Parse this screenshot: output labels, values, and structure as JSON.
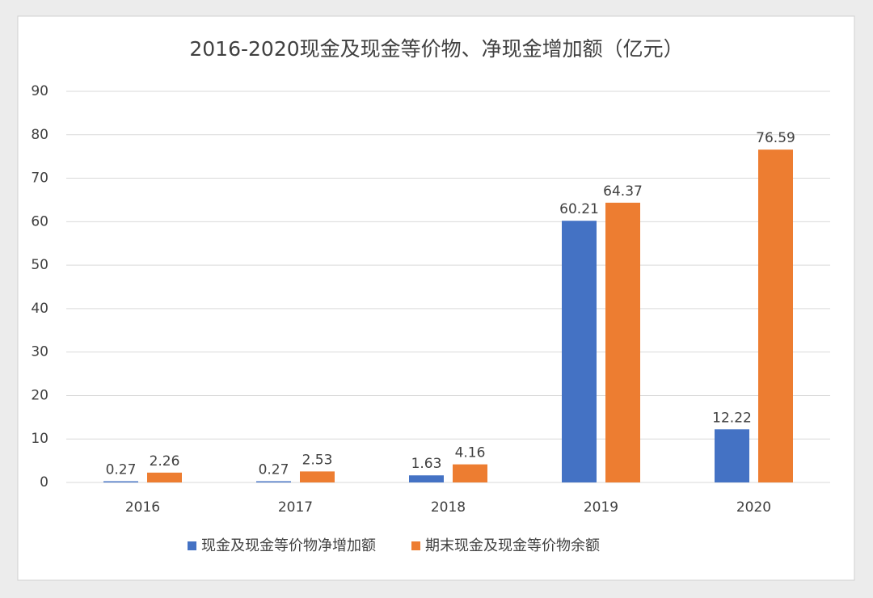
{
  "chart_data": {
    "type": "bar",
    "title": "2016-2020现金及现金等价物、净现金增加额（亿元）",
    "categories": [
      "2016",
      "2017",
      "2018",
      "2019",
      "2020"
    ],
    "series": [
      {
        "name": "现金及现金等价物净增加额",
        "color": "#4472c4",
        "values": [
          0.27,
          0.27,
          1.63,
          60.21,
          12.22
        ]
      },
      {
        "name": "期末现金及现金等价物余额",
        "color": "#ed7d31",
        "values": [
          2.26,
          2.53,
          4.16,
          64.37,
          76.59
        ]
      }
    ],
    "ylim": [
      0,
      90
    ],
    "yticks": [
      0,
      10,
      20,
      30,
      40,
      50,
      60,
      70,
      80,
      90
    ],
    "grid": true,
    "legend": "bottom"
  }
}
